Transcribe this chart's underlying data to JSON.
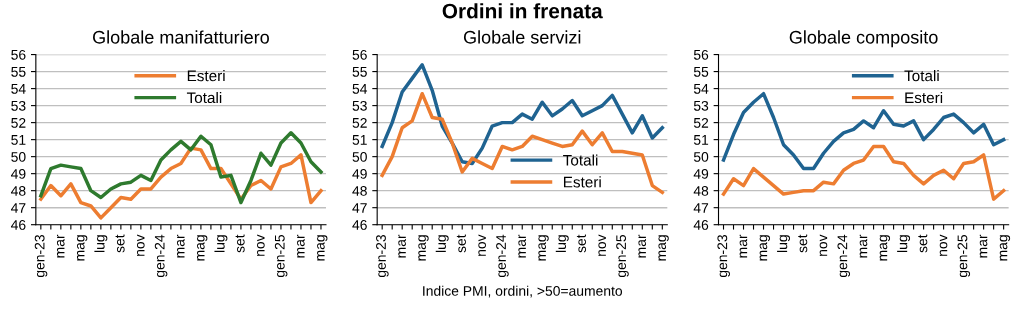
{
  "chart_data": [
    {
      "type": "line",
      "title": "Globale manifatturiero",
      "categories": [
        "gen-23",
        null,
        "mar",
        null,
        "mag",
        null,
        "lug",
        null,
        "set",
        null,
        "nov",
        null,
        "gen-24",
        null,
        "mar",
        null,
        "mag",
        null,
        "lug",
        null,
        "set",
        null,
        "nov",
        null,
        "gen-25",
        null,
        "mar",
        null,
        "mag"
      ],
      "ylim": [
        46,
        56
      ],
      "yticks": [
        46,
        47,
        48,
        49,
        50,
        51,
        52,
        53,
        54,
        55,
        56
      ],
      "grid": "y",
      "legend": "top",
      "series": [
        {
          "name": "Esteri",
          "color": "#ed7d31",
          "values": [
            47.5,
            48.3,
            47.7,
            48.4,
            47.3,
            47.1,
            46.4,
            47.0,
            47.6,
            47.5,
            48.1,
            48.1,
            48.8,
            49.3,
            49.6,
            50.5,
            50.4,
            49.3,
            49.3,
            48.4,
            47.5,
            48.3,
            48.6,
            48.1,
            49.4,
            49.6,
            50.1,
            47.3,
            48.0
          ]
        },
        {
          "name": "Totali",
          "color": "#2e7a2e",
          "values": [
            47.7,
            49.3,
            49.5,
            49.4,
            49.3,
            48.0,
            47.6,
            48.1,
            48.4,
            48.5,
            48.9,
            48.6,
            49.8,
            50.4,
            50.9,
            50.4,
            51.2,
            50.7,
            48.8,
            48.9,
            47.3,
            48.6,
            50.2,
            49.5,
            50.8,
            51.4,
            50.8,
            49.7,
            49.1
          ]
        }
      ]
    },
    {
      "type": "line",
      "title": "Ordini in frenata",
      "subtitle": "Globale servizi",
      "annotations": [
        "Indice PMI, ordini, >50=aumento"
      ],
      "categories": [
        "gen-23",
        null,
        "mar",
        null,
        "mag",
        null,
        "lug",
        null,
        "set",
        null,
        "nov",
        null,
        "gen-24",
        null,
        "mar",
        null,
        "mag",
        null,
        "lug",
        null,
        "set",
        null,
        "nov",
        null,
        "gen-25",
        null,
        "mar",
        null,
        "mag"
      ],
      "ylim": [
        46,
        56
      ],
      "yticks": [
        46,
        47,
        48,
        49,
        50,
        51,
        52,
        53,
        54,
        55,
        56
      ],
      "grid": "y",
      "legend": "bottom",
      "series": [
        {
          "name": "Totali",
          "color": "#1f6391",
          "values": [
            50.6,
            52.0,
            53.8,
            54.6,
            55.4,
            53.9,
            51.8,
            50.8,
            49.7,
            49.6,
            50.5,
            51.8,
            52.0,
            52.0,
            52.5,
            52.2,
            53.2,
            52.4,
            52.8,
            53.3,
            52.4,
            52.7,
            53.0,
            53.6,
            52.5,
            51.4,
            52.4,
            51.1,
            51.7
          ]
        },
        {
          "name": "Esteri",
          "color": "#ed7d31",
          "values": [
            48.9,
            50.0,
            51.7,
            52.1,
            53.7,
            52.3,
            52.2,
            50.8,
            49.1,
            49.9,
            49.6,
            49.3,
            50.6,
            50.4,
            50.6,
            51.2,
            51.0,
            50.8,
            50.6,
            50.7,
            51.5,
            50.7,
            51.4,
            50.3,
            50.3,
            50.2,
            50.1,
            48.3,
            47.9
          ]
        }
      ]
    },
    {
      "type": "line",
      "title": "Globale composito",
      "categories": [
        "gen-23",
        null,
        "mar",
        null,
        "mag",
        null,
        "lug",
        null,
        "set",
        null,
        "nov",
        null,
        "gen-24",
        null,
        "mar",
        null,
        "mag",
        null,
        "lug",
        null,
        "set",
        null,
        "nov",
        null,
        "gen-25",
        null,
        "mar",
        null,
        "mag"
      ],
      "ylim": [
        46,
        56
      ],
      "yticks": [
        46,
        47,
        48,
        49,
        50,
        51,
        52,
        53,
        54,
        55,
        56
      ],
      "grid": "y",
      "legend": "top",
      "series": [
        {
          "name": "Totali",
          "color": "#1f6391",
          "values": [
            49.8,
            51.3,
            52.6,
            53.2,
            53.7,
            52.3,
            50.7,
            50.1,
            49.3,
            49.3,
            50.2,
            50.9,
            51.4,
            51.6,
            52.1,
            51.7,
            52.7,
            51.9,
            51.8,
            52.1,
            51.0,
            51.6,
            52.3,
            52.5,
            52.0,
            51.4,
            51.9,
            50.7,
            51.0
          ]
        },
        {
          "name": "Esteri",
          "color": "#ed7d31",
          "values": [
            47.8,
            48.7,
            48.3,
            49.3,
            48.8,
            48.3,
            47.8,
            47.9,
            48.0,
            48.0,
            48.5,
            48.4,
            49.2,
            49.6,
            49.8,
            50.6,
            50.6,
            49.7,
            49.6,
            48.9,
            48.4,
            48.9,
            49.2,
            48.7,
            49.6,
            49.7,
            50.1,
            47.5,
            48.0
          ]
        }
      ]
    }
  ]
}
